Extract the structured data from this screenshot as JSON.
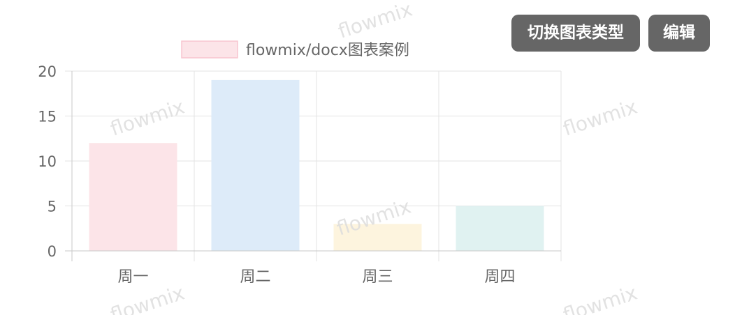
{
  "toolbar": {
    "switch_type_label": "切换图表类型",
    "edit_label": "编辑"
  },
  "watermark": {
    "text": "flowmix",
    "color": "#d9d9d9"
  },
  "chart_data": {
    "type": "bar",
    "categories": [
      "周一",
      "周二",
      "周三",
      "周四"
    ],
    "series": [
      {
        "name": "flowmix/docx图表案例",
        "values": [
          12,
          19,
          3,
          5
        ],
        "colors": [
          "#fce4e8",
          "#ddebf9",
          "#fdf4de",
          "#e0f2f1"
        ],
        "legend_color": "#fce4e8",
        "legend_border": "#f8c5cf"
      }
    ],
    "ylim": [
      0,
      20
    ],
    "yticks": [
      0,
      5,
      10,
      15,
      20
    ],
    "grid": true,
    "legend_position": "top",
    "xlabel": "",
    "ylabel": ""
  }
}
